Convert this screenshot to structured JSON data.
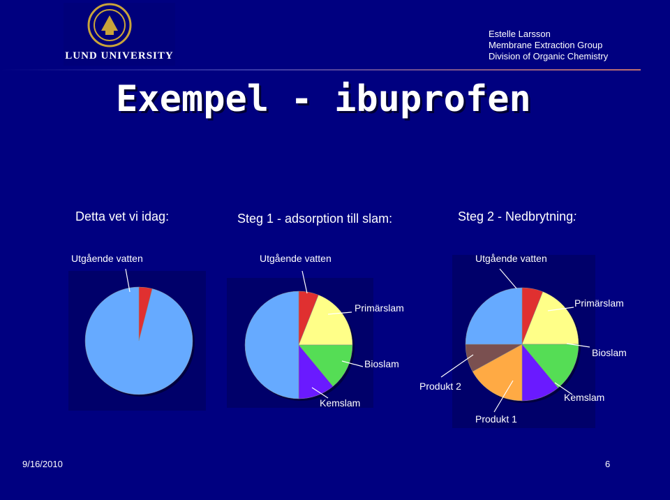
{
  "header": {
    "university": "LUND UNIVERSITY",
    "author": "Estelle Larsson",
    "group": "Membrane Extraction Group",
    "division": "Division of Organic Chemistry"
  },
  "title": "Exempel - ibuprofen",
  "steps": {
    "today": "Detta vet vi idag:",
    "step1": "Steg 1 - adsorption till slam:",
    "step2": "Steg 2 - Nedbrytning",
    "step2_colon": ":"
  },
  "chart_data": [
    {
      "type": "pie",
      "slices": [
        {
          "label": "Utgående vatten",
          "value": 4,
          "color": "#e03030"
        },
        {
          "label": "",
          "value": 96,
          "color": "#66aaff"
        }
      ]
    },
    {
      "type": "pie",
      "slices": [
        {
          "label": "Utgående vatten",
          "value": 6,
          "color": "#e03030"
        },
        {
          "label": "Primärslam",
          "value": 19,
          "color": "#ffff88"
        },
        {
          "label": "Bioslam",
          "value": 14,
          "color": "#55dd55"
        },
        {
          "label": "Kemslam",
          "value": 11,
          "color": "#6a1aff"
        },
        {
          "label": "",
          "value": 50,
          "color": "#66aaff"
        }
      ]
    },
    {
      "type": "pie",
      "slices": [
        {
          "label": "Utgående vatten",
          "value": 6,
          "color": "#e03030"
        },
        {
          "label": "Primärslam",
          "value": 19,
          "color": "#ffff88"
        },
        {
          "label": "Bioslam",
          "value": 14,
          "color": "#55dd55"
        },
        {
          "label": "Kemslam",
          "value": 11,
          "color": "#6a1aff"
        },
        {
          "label": "Produkt 1",
          "value": 17,
          "color": "#ffaa44"
        },
        {
          "label": "Produkt 2",
          "value": 8,
          "color": "#7a5050"
        },
        {
          "label": "",
          "value": 25,
          "color": "#66aaff"
        }
      ]
    }
  ],
  "footer": {
    "date": "9/16/2010",
    "page": "6"
  }
}
